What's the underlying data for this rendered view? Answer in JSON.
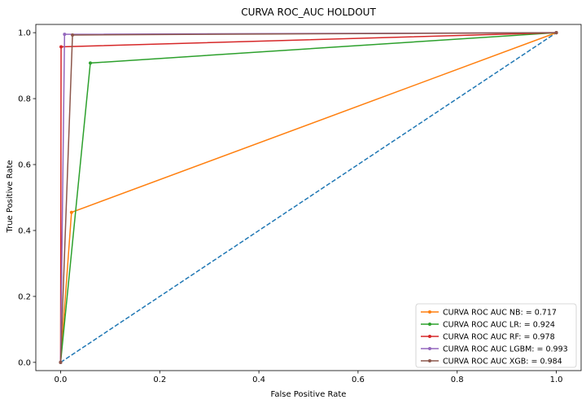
{
  "chart_data": {
    "type": "line",
    "title": "CURVA ROC_AUC HOLDOUT",
    "xlabel": "False Positive Rate",
    "ylabel": "True Positive Rate",
    "xlim": [
      -0.05,
      1.05
    ],
    "ylim": [
      -0.025,
      1.025
    ],
    "xticks": [
      0.0,
      0.2,
      0.4,
      0.6,
      0.8,
      1.0
    ],
    "xtick_labels": [
      "0.0",
      "0.2",
      "0.4",
      "0.6",
      "0.8",
      "1.0"
    ],
    "yticks": [
      0.0,
      0.2,
      0.4,
      0.6,
      0.8,
      1.0
    ],
    "ytick_labels": [
      "0.0",
      "0.2",
      "0.4",
      "0.6",
      "0.8",
      "1.0"
    ],
    "grid": false,
    "legend_position": "bottom-right",
    "baseline": {
      "style": "dashed",
      "color": "#1f77b4",
      "x": [
        0.0,
        1.0
      ],
      "y": [
        0.0,
        1.0
      ]
    },
    "series": [
      {
        "name": "CURVA ROC AUC NB: = 0.717",
        "color": "#ff7f0e",
        "x": [
          0.0,
          0.022,
          1.0
        ],
        "y": [
          0.0,
          0.455,
          1.0
        ]
      },
      {
        "name": "CURVA ROC AUC LR: = 0.924",
        "color": "#2ca02c",
        "x": [
          0.0,
          0.06,
          1.0
        ],
        "y": [
          0.0,
          0.908,
          1.0
        ]
      },
      {
        "name": "CURVA ROC AUC RF: = 0.978",
        "color": "#d62728",
        "x": [
          0.0,
          0.001,
          1.0
        ],
        "y": [
          0.0,
          0.957,
          1.0
        ]
      },
      {
        "name": "CURVA ROC AUC LGBM: = 0.993",
        "color": "#9467bd",
        "x": [
          0.0,
          0.008,
          1.0
        ],
        "y": [
          0.0,
          0.995,
          1.0
        ]
      },
      {
        "name": "CURVA ROC AUC XGB: = 0.984",
        "color": "#8c564b",
        "x": [
          0.0,
          0.024,
          1.0
        ],
        "y": [
          0.0,
          0.993,
          1.0
        ]
      }
    ]
  }
}
